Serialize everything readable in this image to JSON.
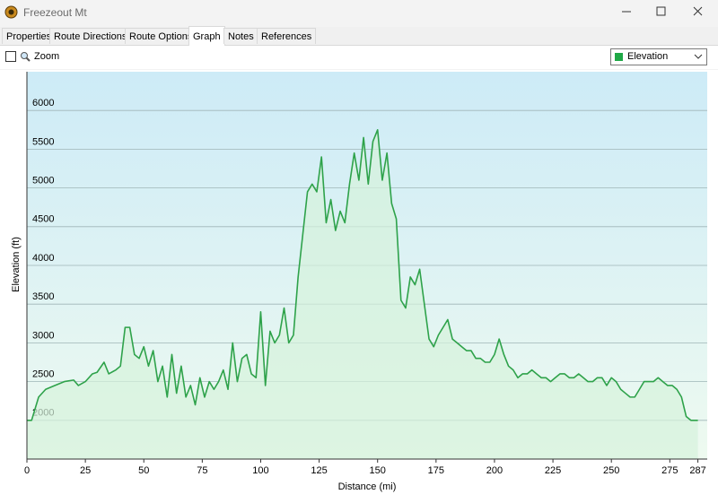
{
  "window": {
    "title": "Freezeout Mt"
  },
  "tabs": [
    "Properties",
    "Route Directions",
    "Route Options",
    "Graph",
    "Notes",
    "References"
  ],
  "toolbar": {
    "zoom_label": "Zoom",
    "dropdown": "Elevation"
  },
  "chart_data": {
    "type": "line",
    "x_label": "Distance  (mi)",
    "y_label": "Elevation (ft)",
    "x": [
      0,
      2,
      5,
      8,
      12,
      16,
      20,
      22,
      25,
      28,
      30,
      33,
      35,
      38,
      40,
      42,
      44,
      46,
      48,
      50,
      52,
      54,
      56,
      58,
      60,
      62,
      64,
      66,
      68,
      70,
      72,
      74,
      76,
      78,
      80,
      82,
      84,
      86,
      88,
      90,
      92,
      94,
      96,
      98,
      100,
      102,
      104,
      106,
      108,
      110,
      112,
      114,
      116,
      118,
      120,
      122,
      124,
      126,
      128,
      130,
      132,
      134,
      136,
      138,
      140,
      142,
      144,
      146,
      148,
      150,
      152,
      154,
      156,
      158,
      160,
      162,
      164,
      166,
      168,
      170,
      172,
      174,
      176,
      178,
      180,
      182,
      184,
      186,
      188,
      190,
      192,
      194,
      196,
      198,
      200,
      202,
      204,
      206,
      208,
      210,
      212,
      214,
      216,
      218,
      220,
      222,
      224,
      226,
      228,
      230,
      232,
      234,
      236,
      238,
      240,
      242,
      244,
      246,
      248,
      250,
      252,
      254,
      256,
      258,
      260,
      262,
      264,
      266,
      268,
      270,
      272,
      274,
      276,
      278,
      280,
      282,
      284,
      286,
      287
    ],
    "series": [
      {
        "color": "#2ea24a",
        "values": [
          2000,
          2000,
          2300,
          2400,
          2450,
          2500,
          2520,
          2450,
          2500,
          2600,
          2620,
          2750,
          2600,
          2650,
          2700,
          3200,
          3200,
          2850,
          2800,
          2950,
          2700,
          2900,
          2500,
          2700,
          2300,
          2850,
          2350,
          2700,
          2300,
          2450,
          2200,
          2550,
          2300,
          2500,
          2400,
          2500,
          2650,
          2400,
          3000,
          2500,
          2800,
          2850,
          2600,
          2550,
          3400,
          2450,
          3150,
          3000,
          3100,
          3450,
          3000,
          3100,
          3850,
          4400,
          4950,
          5050,
          4950,
          5400,
          4550,
          4850,
          4450,
          4700,
          4550,
          5050,
          5450,
          5100,
          5650,
          5050,
          5600,
          5750,
          5100,
          5450,
          4800,
          4600,
          3550,
          3450,
          3850,
          3750,
          3950,
          3500,
          3050,
          2950,
          3100,
          3200,
          3300,
          3050,
          3000,
          2950,
          2900,
          2900,
          2800,
          2800,
          2750,
          2750,
          2850,
          3050,
          2850,
          2700,
          2650,
          2550,
          2600,
          2600,
          2650,
          2600,
          2550,
          2550,
          2500,
          2550,
          2600,
          2600,
          2550,
          2550,
          2600,
          2550,
          2500,
          2500,
          2550,
          2550,
          2450,
          2550,
          2500,
          2400,
          2350,
          2300,
          2300,
          2400,
          2500,
          2500,
          2500,
          2550,
          2500,
          2450,
          2450,
          2400,
          2300,
          2050,
          2000,
          2000,
          2000
        ]
      }
    ],
    "xlim": [
      0,
      291
    ],
    "xticks": [
      0,
      25,
      50,
      75,
      100,
      125,
      150,
      175,
      200,
      225,
      250,
      275,
      287
    ],
    "ylim": [
      1500,
      6500
    ],
    "yticks": [
      2000,
      2500,
      3000,
      3500,
      4000,
      4500,
      5000,
      5500,
      6000
    ],
    "grid": true
  }
}
